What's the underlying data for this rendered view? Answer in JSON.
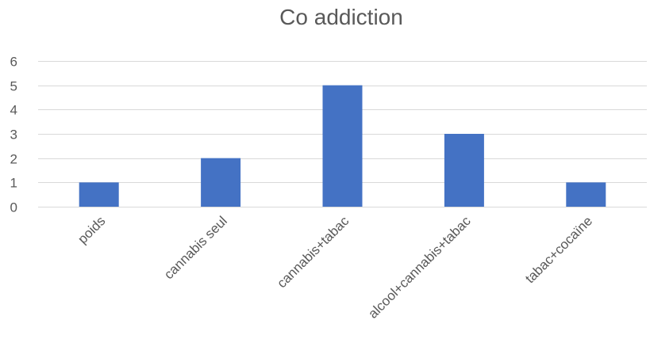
{
  "chart_data": {
    "type": "bar",
    "title": "Co addiction",
    "categories": [
      "poids",
      "cannabis seul",
      "cannabis+tabac",
      "alcool+cannabis+tabac",
      "tabac+cocaïne"
    ],
    "series": [
      {
        "values": [
          1,
          2,
          5,
          3,
          1
        ]
      }
    ],
    "xlabel": "",
    "ylabel": "",
    "ylim": [
      0,
      6
    ],
    "yticks": [
      0,
      1,
      2,
      3,
      4,
      5,
      6
    ],
    "grid": true,
    "legend": "none",
    "colors": {
      "bar": "#4472c4",
      "text": "#595959",
      "grid": "#d9d9d9"
    }
  }
}
